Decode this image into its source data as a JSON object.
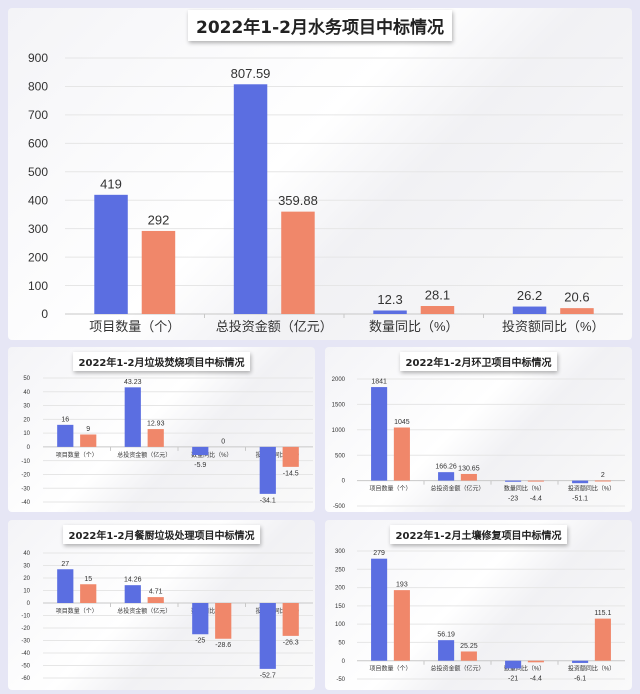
{
  "colors": {
    "series1": "#5b6ee1",
    "series2": "#f0876a"
  },
  "chart_data": [
    {
      "type": "bar",
      "title": "2022年1-2月水务项目中标情况",
      "categories": [
        "项目数量（个）",
        "总投资金额（亿元）",
        "数量同比（%）",
        "投资额同比（%）"
      ],
      "series": [
        {
          "values": [
            419,
            807.59,
            12.3,
            26.2
          ]
        },
        {
          "values": [
            292,
            359.88,
            28.1,
            20.6
          ]
        }
      ],
      "ylim": [
        0,
        900
      ],
      "ytick_step": 100,
      "grid": true,
      "ytick_labels": [
        "0",
        "100",
        "200",
        "300",
        "400",
        "500",
        "600",
        "700",
        "800",
        "900"
      ]
    },
    {
      "type": "bar",
      "title": "2022年1-2月垃圾焚烧项目中标情况",
      "categories": [
        "项目数量（个）",
        "总投资金额（亿元）",
        "数量同比（%）",
        "投资额同比（%）"
      ],
      "series": [
        {
          "values": [
            16,
            43.23,
            -5.9,
            -34.1
          ]
        },
        {
          "values": [
            9,
            12.93,
            0,
            -14.5
          ]
        }
      ],
      "ylim": [
        -40,
        50
      ],
      "ytick_step": 10,
      "grid": true,
      "ytick_labels": [
        "-40",
        "-30",
        "-20",
        "-10",
        "0",
        "10",
        "20",
        "30",
        "40",
        "50"
      ]
    },
    {
      "type": "bar",
      "title": "2022年1-2月环卫项目中标情况",
      "categories": [
        "项目数量（个）",
        "总投资金额（亿元）",
        "数量同比（%）",
        "投资额同比（%）"
      ],
      "series": [
        {
          "values": [
            1841,
            166.26,
            -23,
            -51.1
          ]
        },
        {
          "values": [
            1045,
            130.65,
            -4.4,
            2
          ]
        }
      ],
      "ylim": [
        -500,
        2000
      ],
      "ytick_step": 500,
      "grid": true,
      "ytick_labels": [
        "-500",
        "0",
        "500",
        "1000",
        "1500",
        "2000"
      ]
    },
    {
      "type": "bar",
      "title": "2022年1-2月餐厨垃圾处理项目中标情况",
      "categories": [
        "项目数量（个）",
        "总投资金额（亿元）",
        "数量同比（%）",
        "投资额同比（%）"
      ],
      "series": [
        {
          "values": [
            27,
            14.26,
            -25,
            -52.7
          ]
        },
        {
          "values": [
            15,
            4.71,
            -28.6,
            -26.3
          ]
        }
      ],
      "ylim": [
        -60,
        40
      ],
      "ytick_step": 10,
      "grid": true,
      "ytick_labels": [
        "-60",
        "-50",
        "-40",
        "-30",
        "-20",
        "-10",
        "0",
        "10",
        "20",
        "30",
        "40"
      ]
    },
    {
      "type": "bar",
      "title": "2022年1-2月土壤修复项目中标情况",
      "categories": [
        "项目数量（个）",
        "总投资金额（亿元）",
        "数量同比（%）",
        "投资额同比（%）"
      ],
      "series": [
        {
          "values": [
            279,
            56.19,
            -21,
            -6.1
          ]
        },
        {
          "values": [
            193,
            25.25,
            -4.4,
            115.1
          ]
        }
      ],
      "ylim": [
        -50,
        300
      ],
      "ytick_step": 50,
      "grid": true,
      "ytick_labels": [
        "-50",
        "0",
        "50",
        "100",
        "150",
        "200",
        "250",
        "300"
      ]
    }
  ]
}
